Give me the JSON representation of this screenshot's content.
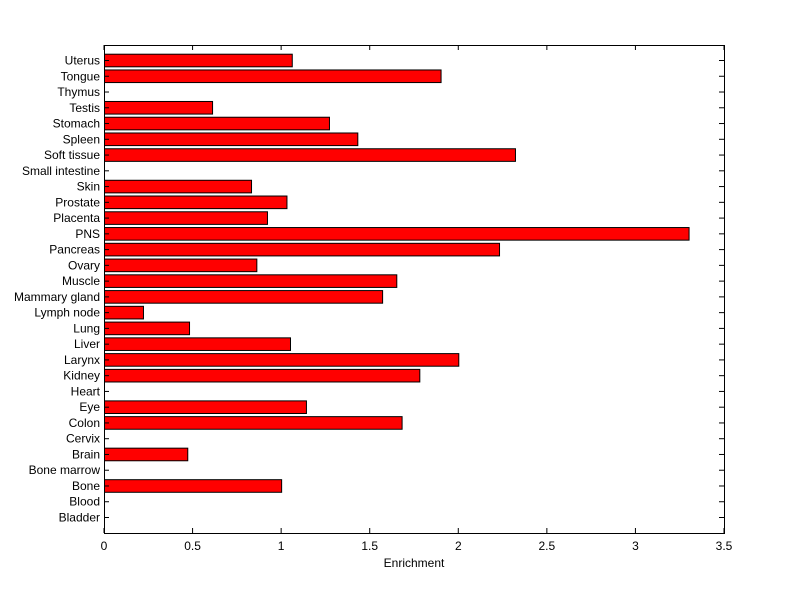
{
  "chart_data": {
    "type": "bar",
    "orientation": "horizontal",
    "xlabel": "Enrichment",
    "ylabel": "",
    "title": "",
    "xlim": [
      0,
      3.5
    ],
    "x_ticks": [
      "0",
      "0.5",
      "1",
      "1.5",
      "2",
      "2.5",
      "3",
      "3.5"
    ],
    "grid": false,
    "bar_color": "#ff0000",
    "edge_color": "#000000",
    "categories": [
      "Bladder",
      "Blood",
      "Bone",
      "Bone marrow",
      "Brain",
      "Cervix",
      "Colon",
      "Eye",
      "Heart",
      "Kidney",
      "Larynx",
      "Liver",
      "Lung",
      "Lymph node",
      "Mammary gland",
      "Muscle",
      "Ovary",
      "Pancreas",
      "PNS",
      "Placenta",
      "Prostate",
      "Skin",
      "Small intestine",
      "Soft tissue",
      "Spleen",
      "Stomach",
      "Testis",
      "Thymus",
      "Tongue",
      "Uterus"
    ],
    "values": [
      0,
      0,
      1.0,
      0,
      0.47,
      0,
      1.68,
      1.14,
      0,
      1.78,
      2.0,
      1.05,
      0.48,
      0.22,
      1.57,
      1.65,
      0.86,
      2.23,
      3.3,
      0.92,
      1.03,
      0.83,
      0,
      2.32,
      1.43,
      1.27,
      0.61,
      0,
      1.9,
      1.06
    ]
  }
}
